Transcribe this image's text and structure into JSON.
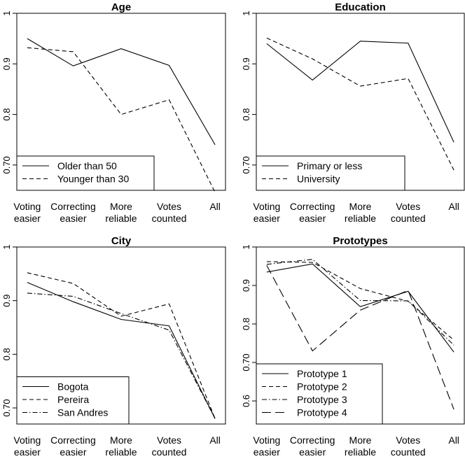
{
  "chart_data": [
    {
      "type": "line",
      "title": "Age",
      "categories": [
        "Voting easier",
        "Correcting easier",
        "More reliable",
        "Votes counted",
        "All"
      ],
      "ylim": [
        0.65,
        1.0
      ],
      "yticks": [
        0.7,
        0.8,
        0.9,
        1
      ],
      "ytick_labels": [
        "0.70",
        "0.8",
        "0.9",
        "1"
      ],
      "legend_position": "bottom-left",
      "series": [
        {
          "name": "Older than 50",
          "dash": "solid",
          "values": [
            0.95,
            0.896,
            0.93,
            0.897,
            0.74
          ]
        },
        {
          "name": "Younger than 30",
          "dash": "dashed",
          "values": [
            0.932,
            0.924,
            0.8,
            0.829,
            0.646
          ]
        }
      ]
    },
    {
      "type": "line",
      "title": "Education",
      "categories": [
        "Voting easier",
        "Correcting easier",
        "More reliable",
        "Votes counted",
        "All"
      ],
      "ylim": [
        0.65,
        1.0
      ],
      "yticks": [
        0.7,
        0.8,
        0.9,
        1
      ],
      "ytick_labels": [
        "0.70",
        "0.8",
        "0.9",
        "1"
      ],
      "legend_position": "bottom-left",
      "series": [
        {
          "name": "Primary or less",
          "dash": "solid",
          "values": [
            0.94,
            0.868,
            0.945,
            0.941,
            0.745
          ]
        },
        {
          "name": "University",
          "dash": "dashed",
          "values": [
            0.951,
            0.91,
            0.856,
            0.871,
            0.69
          ]
        }
      ]
    },
    {
      "type": "line",
      "title": "City",
      "categories": [
        "Voting easier",
        "Correcting easier",
        "More reliable",
        "Votes counted",
        "All"
      ],
      "ylim": [
        0.67,
        1.0
      ],
      "yticks": [
        0.7,
        0.8,
        0.9,
        1
      ],
      "ytick_labels": [
        "0.70",
        "0.8",
        "0.9",
        "1"
      ],
      "legend_position": "bottom-left",
      "series": [
        {
          "name": "Bogota",
          "dash": "solid",
          "values": [
            0.934,
            0.898,
            0.865,
            0.853,
            0.68
          ]
        },
        {
          "name": "Pereira",
          "dash": "dashed",
          "values": [
            0.952,
            0.932,
            0.871,
            0.894,
            0.68
          ]
        },
        {
          "name": "San Andres",
          "dash": "dashdot",
          "values": [
            0.914,
            0.908,
            0.876,
            0.845,
            0.68
          ]
        }
      ]
    },
    {
      "type": "line",
      "title": "Prototypes",
      "categories": [
        "Voting easier",
        "Correcting easier",
        "More reliable",
        "Votes counted",
        "All"
      ],
      "ylim": [
        0.54,
        1.0
      ],
      "yticks": [
        0.6,
        0.7,
        0.8,
        0.9,
        1
      ],
      "ytick_labels": [
        "0.6",
        "0.70",
        "0.8",
        "0.9",
        "1"
      ],
      "legend_position": "bottom-left",
      "series": [
        {
          "name": "Prototype 1",
          "dash": "solid",
          "values": [
            0.935,
            0.956,
            0.845,
            0.885,
            0.727
          ]
        },
        {
          "name": "Prototype 2",
          "dash": "dashed",
          "values": [
            0.962,
            0.96,
            0.892,
            0.859,
            0.758
          ]
        },
        {
          "name": "Prototype 3",
          "dash": "dashdot",
          "values": [
            0.955,
            0.968,
            0.861,
            0.86,
            0.745
          ]
        },
        {
          "name": "Prototype 4",
          "dash": "longdash",
          "values": [
            0.952,
            0.73,
            0.836,
            0.887,
            0.578
          ]
        }
      ]
    }
  ]
}
